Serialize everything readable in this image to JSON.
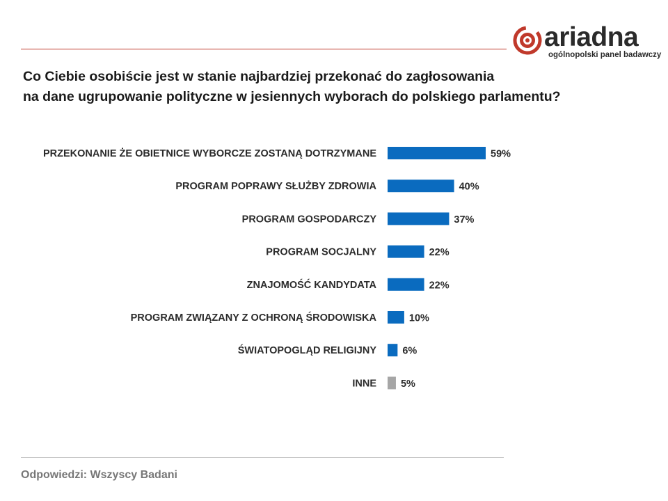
{
  "logo": {
    "name": "ariadna",
    "subtitle": "ogólnopolski panel badawczy"
  },
  "question": {
    "line1": "Co Ciebie osobiście jest w stanie najbardziej przekonać do zagłosowania",
    "line2": "na dane ugrupowanie polityczne w jesiennych wyborach do polskiego parlamentu?"
  },
  "colors": {
    "bar": "#0a6bbf",
    "bar_other": "#a6a6a6",
    "rule": "#c0392b",
    "label": "#2b2b2b"
  },
  "chart_data": {
    "type": "bar",
    "orientation": "horizontal",
    "categories": [
      "PRZEKONANIE ŻE OBIETNICE WYBORCZE ZOSTANĄ DOTRZYMANE",
      "PROGRAM POPRAWY SŁUŻBY ZDROWIA",
      "PROGRAM GOSPODARCZY",
      "PROGRAM SOCJALNY",
      "ZNAJOMOŚĆ KANDYDATA",
      "PROGRAM ZWIĄZANY Z OCHRONĄ ŚRODOWISKA",
      "ŚWIATOPOGLĄD RELIGIJNY",
      "INNE"
    ],
    "values": [
      59,
      40,
      37,
      22,
      22,
      10,
      6,
      5
    ],
    "value_labels": [
      "59%",
      "40%",
      "37%",
      "22%",
      "22%",
      "10%",
      "6%",
      "5%"
    ],
    "highlight_last_gray": true,
    "xlim": [
      0,
      100
    ],
    "grid": false,
    "legend": "none"
  },
  "footer": {
    "base_text": "Odpowiedzi:  Wszyscy  Badani"
  }
}
